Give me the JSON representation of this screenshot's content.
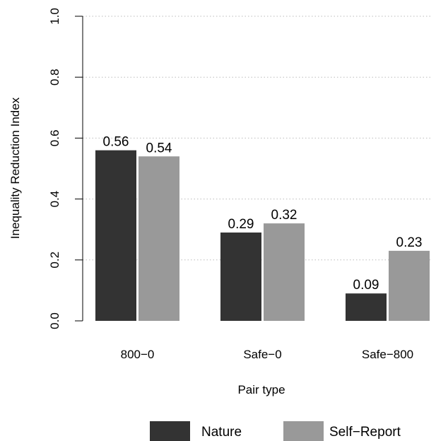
{
  "chart_data": {
    "type": "bar",
    "title": "",
    "xlabel": "Pair type",
    "ylabel": "Inequality Reduction Index",
    "ylim": [
      0,
      1
    ],
    "yticks": [
      "0.0",
      "0.2",
      "0.4",
      "0.6",
      "0.8",
      "1.0"
    ],
    "grid": "horizontal dotted",
    "legend_position": "bottom",
    "categories": [
      "800−0",
      "Safe−0",
      "Safe−800"
    ],
    "series": [
      {
        "name": "Nature",
        "color": "#333333",
        "values": [
          0.56,
          0.29,
          0.09
        ],
        "labels": [
          "0.56",
          "0.29",
          "0.09"
        ]
      },
      {
        "name": "Self−Report",
        "color": "#999999",
        "values": [
          0.54,
          0.32,
          0.23
        ],
        "labels": [
          "0.54",
          "0.32",
          "0.23"
        ]
      }
    ]
  }
}
